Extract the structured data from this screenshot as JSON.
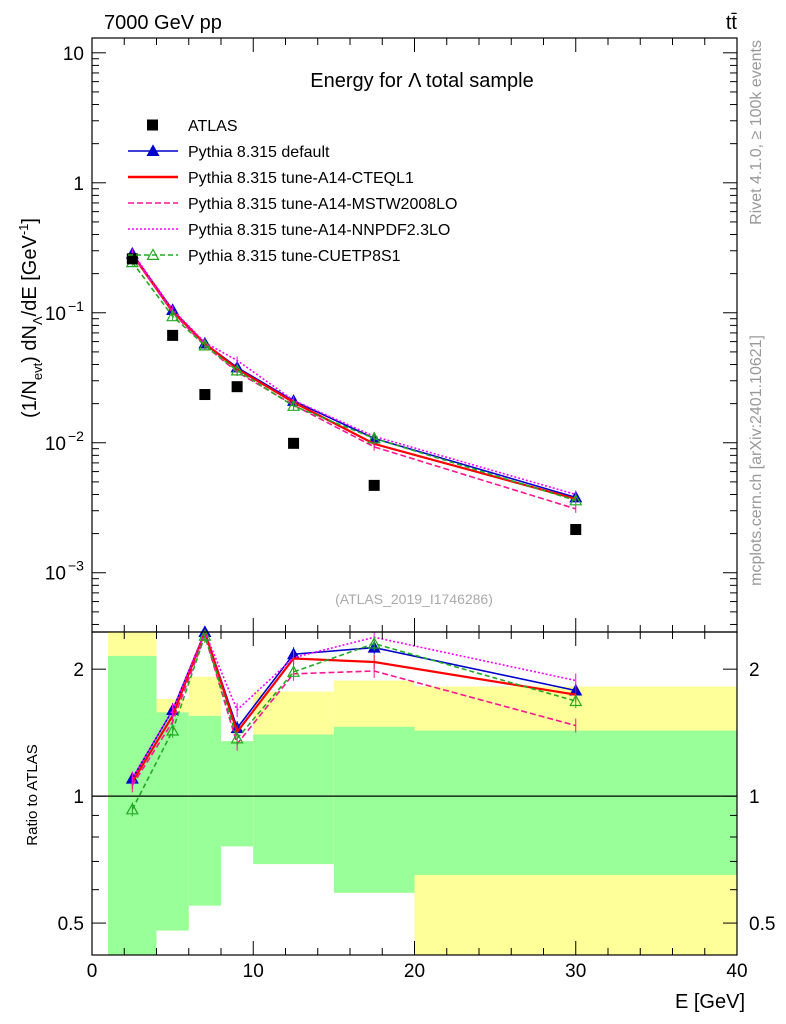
{
  "header": {
    "left": "7000 GeV pp",
    "right": "tt̄"
  },
  "side_labels": {
    "rivet": "Rivet 4.1.0, ≥ 100k events",
    "mcplots": "mcplots.cern.ch [arXiv:2401.10621]"
  },
  "chart_data": [
    {
      "type": "line",
      "panel": "main",
      "title": "Energy for Λ total sample",
      "ylabel": "(1/N_evt) dN_Λ/dE [GeV^-1]",
      "ylabel_parts": {
        "a": "(1/N",
        "b": "evt",
        "c": ") dN",
        "d": "Λ",
        "e": "/dE [GeV",
        "f": "-1",
        "g": "]"
      },
      "yscale": "log",
      "ylim": [
        0.00035,
        13
      ],
      "xlim": [
        0,
        40
      ],
      "yticks": [
        {
          "v": 10,
          "label": "10"
        },
        {
          "v": 1,
          "label": "1"
        },
        {
          "v": 0.1,
          "base": "10",
          "exp": "−1"
        },
        {
          "v": 0.01,
          "base": "10",
          "exp": "−2"
        },
        {
          "v": 0.001,
          "base": "10",
          "exp": "−3"
        }
      ],
      "watermark": "(ATLAS_2019_I1746286)",
      "legend_position": "top-left",
      "data": {
        "name": "ATLAS",
        "x": [
          2.5,
          5,
          7,
          9,
          12.5,
          17.5,
          30
        ],
        "y": [
          0.26,
          0.067,
          0.0235,
          0.027,
          0.0099,
          0.0047,
          0.00215
        ]
      },
      "series": [
        {
          "name": "Pythia 8.315 default",
          "color": "#0000cc",
          "dash": "",
          "marker": "triangle-filled",
          "x": [
            2.5,
            5,
            7,
            9,
            12.5,
            17.5,
            30
          ],
          "y": [
            0.285,
            0.105,
            0.058,
            0.038,
            0.021,
            0.0108,
            0.0038
          ]
        },
        {
          "name": "Pythia 8.315 tune-A14-CTEQL1",
          "color": "#ff0000",
          "dash": "",
          "marker": "none",
          "x": [
            2.5,
            5,
            7,
            9,
            12.5,
            17.5,
            30
          ],
          "y": [
            0.28,
            0.102,
            0.058,
            0.037,
            0.0205,
            0.0098,
            0.0037
          ]
        },
        {
          "name": "Pythia 8.315 tune-A14-MSTW2008LO",
          "color": "#ff1493",
          "dash": "6,3",
          "marker": "none",
          "x": [
            2.5,
            5,
            7,
            9,
            12.5,
            17.5,
            30
          ],
          "y": [
            0.28,
            0.1,
            0.056,
            0.035,
            0.0195,
            0.0093,
            0.0031
          ]
        },
        {
          "name": "Pythia 8.315 tune-A14-NNPDF2.3LO",
          "color": "#ff00ff",
          "dash": "2,2",
          "marker": "none",
          "x": [
            2.5,
            5,
            7,
            9,
            12.5,
            17.5,
            30
          ],
          "y": [
            0.29,
            0.106,
            0.059,
            0.043,
            0.0212,
            0.0112,
            0.004
          ]
        },
        {
          "name": "Pythia 8.315 tune-CUETP8S1",
          "color": "#22aa22",
          "dash": "5,3",
          "marker": "triangle-open",
          "x": [
            2.5,
            5,
            7,
            9,
            12.5,
            17.5,
            30
          ],
          "y": [
            0.245,
            0.094,
            0.056,
            0.036,
            0.0192,
            0.0108,
            0.0036
          ]
        }
      ]
    },
    {
      "type": "line",
      "panel": "ratio",
      "ylabel": "Ratio to ATLAS",
      "xlabel": "E [GeV]",
      "yscale": "log",
      "ylim": [
        0.42,
        2.45
      ],
      "xlim": [
        0,
        40
      ],
      "xticks": [
        0,
        10,
        20,
        30,
        40
      ],
      "yticks": [
        0.5,
        1,
        2
      ],
      "reference": 1,
      "bands": [
        {
          "x0": 1,
          "x1": 4,
          "yellow": [
            0.42,
            2.45
          ],
          "green": [
            0.42,
            2.15
          ]
        },
        {
          "x0": 4,
          "x1": 6,
          "yellow": [
            0.48,
            1.7
          ],
          "green": [
            0.48,
            1.58
          ]
        },
        {
          "x0": 6,
          "x1": 8,
          "yellow": [
            0.55,
            1.92
          ],
          "green": [
            0.55,
            1.55
          ]
        },
        {
          "x0": 8,
          "x1": 10,
          "yellow": [
            0.76,
            1.35
          ],
          "green": [
            0.76,
            1.35
          ]
        },
        {
          "x0": 10,
          "x1": 15,
          "yellow": [
            0.69,
            1.77
          ],
          "green": [
            0.69,
            1.4
          ]
        },
        {
          "x0": 15,
          "x1": 20,
          "yellow": [
            0.59,
            1.88
          ],
          "green": [
            0.59,
            1.46
          ]
        },
        {
          "x0": 20,
          "x1": 40,
          "yellow": [
            0.42,
            1.82
          ],
          "green": [
            0.65,
            1.43
          ]
        }
      ],
      "series": [
        {
          "name": "Pythia 8.315 default",
          "x": [
            2.5,
            5,
            7,
            9,
            12.5,
            17.5,
            30
          ],
          "y": [
            1.1,
            1.6,
            2.45,
            1.45,
            2.17,
            2.25,
            1.78
          ]
        },
        {
          "name": "Pythia 8.315 tune-A14-CTEQL1",
          "x": [
            2.5,
            5,
            7,
            9,
            12.5,
            17.5,
            30
          ],
          "y": [
            1.08,
            1.55,
            2.45,
            1.42,
            2.12,
            2.08,
            1.74
          ]
        },
        {
          "name": "Pythia 8.315 tune-A14-MSTW2008LO",
          "x": [
            2.5,
            5,
            7,
            9,
            12.5,
            17.5,
            30
          ],
          "y": [
            1.06,
            1.5,
            2.4,
            1.33,
            1.95,
            1.98,
            1.47
          ]
        },
        {
          "name": "Pythia 8.315 tune-A14-NNPDF2.3LO",
          "x": [
            2.5,
            5,
            7,
            9,
            12.5,
            17.5,
            30
          ],
          "y": [
            1.1,
            1.6,
            2.48,
            1.6,
            2.13,
            2.38,
            1.88
          ]
        },
        {
          "name": "Pythia 8.315 tune-CUETP8S1",
          "x": [
            2.5,
            5,
            7,
            9,
            12.5,
            17.5,
            30
          ],
          "y": [
            0.93,
            1.43,
            2.4,
            1.37,
            1.97,
            2.3,
            1.68
          ]
        }
      ]
    }
  ]
}
